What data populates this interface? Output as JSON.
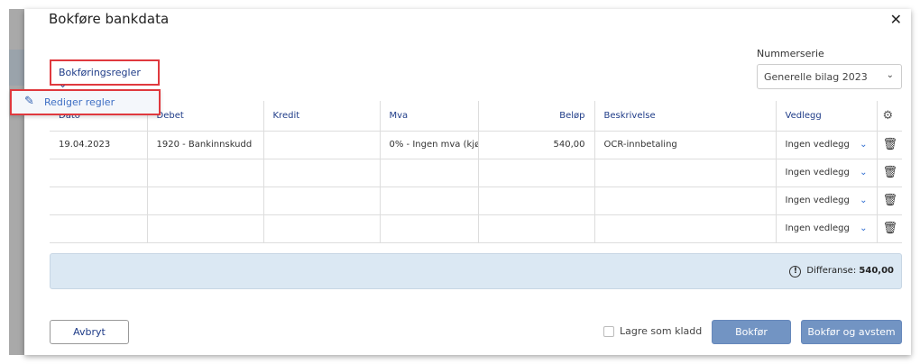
{
  "dialog": {
    "title": "Bokføre bankdata",
    "close_icon": "close-icon"
  },
  "rules": {
    "label": "Bokføringsregler",
    "menu_item": "Rediger regler"
  },
  "number_series": {
    "label": "Nummerserie",
    "value": "Generelle bilag 2023"
  },
  "table": {
    "headers": [
      "Dato",
      "Debet",
      "Kredit",
      "Mva",
      "Beløp",
      "Beskrivelse",
      "Vedlegg"
    ],
    "rows": [
      {
        "date": "19.04.2023",
        "debit": "1920 - Bankinnskudd",
        "credit": "",
        "vat": "0% - Ingen mva (kjø",
        "amount": "540,00",
        "description": "OCR-innbetaling",
        "attachment": "Ingen vedlegg"
      },
      {
        "date": "",
        "debit": "",
        "credit": "",
        "vat": "",
        "amount": "",
        "description": "",
        "attachment": "Ingen vedlegg"
      },
      {
        "date": "",
        "debit": "",
        "credit": "",
        "vat": "",
        "amount": "",
        "description": "",
        "attachment": "Ingen vedlegg"
      },
      {
        "date": "",
        "debit": "",
        "credit": "",
        "vat": "",
        "amount": "",
        "description": "",
        "attachment": "Ingen vedlegg"
      }
    ]
  },
  "difference": {
    "label": "Differanse:",
    "value": "540,00"
  },
  "footer": {
    "cancel": "Avbryt",
    "draft": "Lagre som kladd",
    "post": "Bokfør",
    "post_reconcile": "Bokfør og avstem"
  },
  "colors": {
    "accent": "#1f3c88",
    "primary_button": "#7294c3",
    "info_bg": "#dbe8f3",
    "highlight": "#e0393e"
  }
}
